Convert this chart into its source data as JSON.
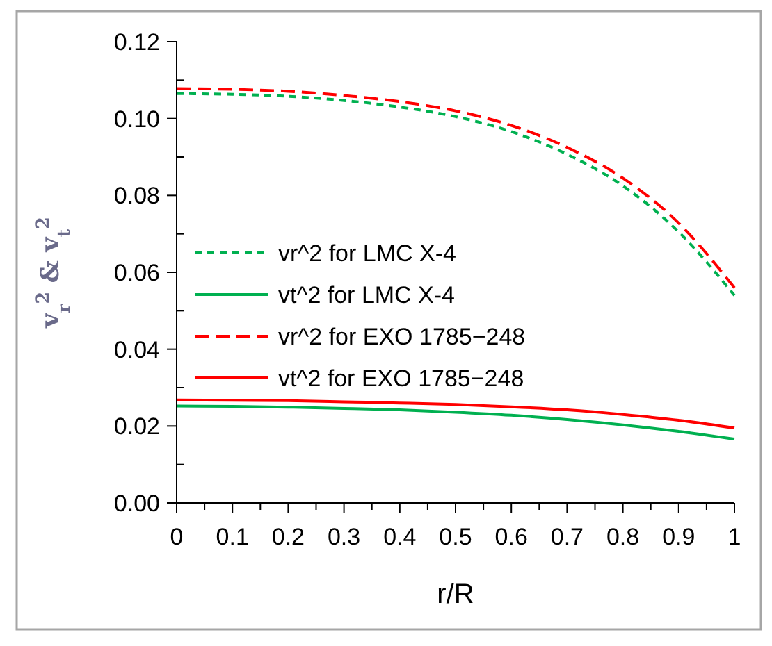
{
  "chart_data": {
    "type": "line",
    "xlabel": "r/R",
    "ylabel": "v$_{r}$$^{2}$ & v$_{t}$$^{2}$",
    "x": [
      0,
      0.1,
      0.2,
      0.3,
      0.4,
      0.5,
      0.6,
      0.7,
      0.8,
      0.9,
      1
    ],
    "xlim": [
      0,
      1
    ],
    "xticks": [
      0,
      {
        "value": 0.05,
        "label": null
      },
      0.1,
      {
        "value": 0.15,
        "label": null
      },
      0.2,
      {
        "value": 0.25,
        "label": null
      },
      0.3,
      {
        "value": 0.35,
        "label": null
      },
      0.4,
      {
        "value": 0.45,
        "label": null
      },
      0.5,
      {
        "value": 0.55,
        "label": null
      },
      0.6,
      {
        "value": 0.65,
        "label": null
      },
      0.7,
      {
        "value": 0.75,
        "label": null
      },
      0.8,
      {
        "value": 0.85,
        "label": null
      },
      0.9,
      {
        "value": 0.95,
        "label": null
      },
      1
    ],
    "ylim": [
      0,
      0.12
    ],
    "yticks": [
      {
        "value": 0,
        "label": "0.00"
      },
      {
        "value": 0.01,
        "label": null
      },
      {
        "value": 0.02,
        "label": "0.02"
      },
      {
        "value": 0.03,
        "label": null
      },
      {
        "value": 0.04,
        "label": "0.04"
      },
      {
        "value": 0.05,
        "label": null
      },
      {
        "value": 0.06,
        "label": "0.06"
      },
      {
        "value": 0.07,
        "label": null
      },
      {
        "value": 0.08,
        "label": "0.08"
      },
      {
        "value": 0.09,
        "label": null
      },
      {
        "value": 0.1,
        "label": "0.10"
      },
      {
        "value": 0.11,
        "label": null
      },
      {
        "value": 0.12,
        "label": "0.12"
      }
    ],
    "grid": false,
    "legend": "center left",
    "series": [
      {
        "name": "vr^2  for  LMC  X-4",
        "color": "#00b050",
        "line_style": "dotted",
        "values": [
          0.1065,
          0.1063,
          0.1058,
          0.1047,
          0.103,
          0.1005,
          0.0966,
          0.0907,
          0.0825,
          0.0705,
          0.054
        ]
      },
      {
        "name": "vt^2  for  LMC  X-4",
        "color": "#00b050",
        "line_style": "solid",
        "values": [
          0.0252,
          0.0251,
          0.0249,
          0.0246,
          0.0242,
          0.0236,
          0.0228,
          0.0217,
          0.0203,
          0.0186,
          0.0166
        ]
      },
      {
        "name": "vr^2  for  EXO 1785−248",
        "color": "#ff0000",
        "line_style": "dashed",
        "values": [
          0.1078,
          0.1076,
          0.1071,
          0.106,
          0.1044,
          0.102,
          0.0982,
          0.0925,
          0.0845,
          0.0728,
          0.056
        ]
      },
      {
        "name": "vt^2  for  EXO 1785−248",
        "color": "#ff0000",
        "line_style": "solid",
        "values": [
          0.0268,
          0.0267,
          0.0266,
          0.0263,
          0.026,
          0.0256,
          0.025,
          0.0242,
          0.023,
          0.0215,
          0.0195
        ]
      }
    ]
  }
}
